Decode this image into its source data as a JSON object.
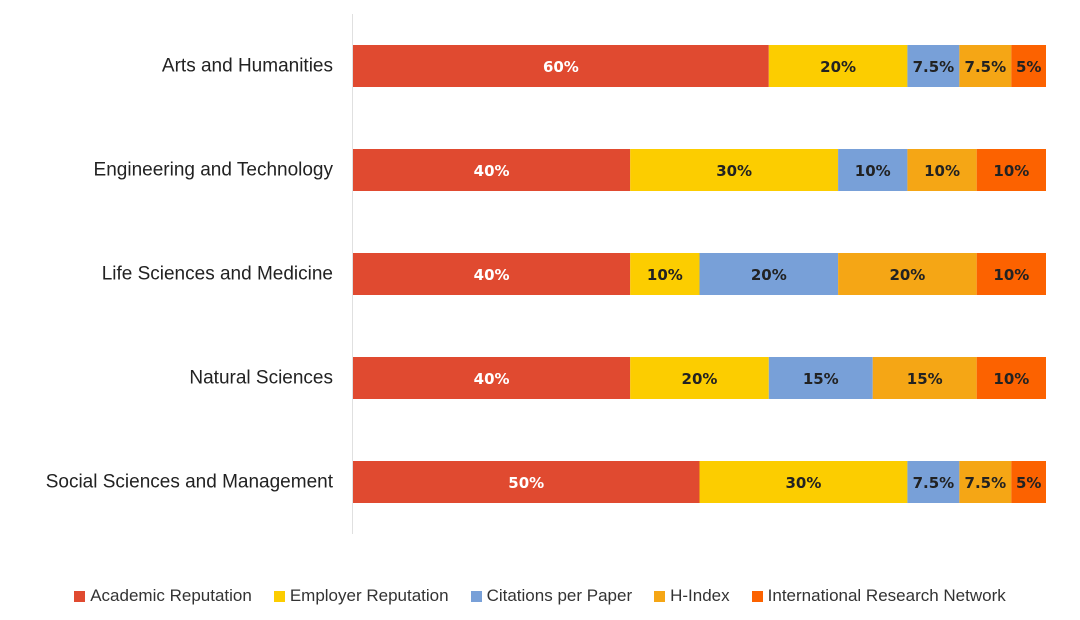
{
  "chart_data": {
    "type": "bar",
    "orientation": "horizontal",
    "stacked": true,
    "categories": [
      "Arts and Humanities",
      "Engineering and Technology",
      "Life Sciences and Medicine",
      "Natural Sciences",
      "Social Sciences and Management"
    ],
    "series": [
      {
        "name": "Academic Reputation",
        "color": "#e04a30",
        "label_color": "#ffffff",
        "values": [
          60,
          40,
          40,
          40,
          50
        ]
      },
      {
        "name": "Employer Reputation",
        "color": "#fccd00",
        "label_color": "#222222",
        "values": [
          20,
          30,
          10,
          20,
          30
        ]
      },
      {
        "name": "Citations per Paper",
        "color": "#78a0d8",
        "label_color": "#222222",
        "values": [
          7.5,
          10,
          20,
          15,
          7.5
        ]
      },
      {
        "name": "H-Index",
        "color": "#f5a615",
        "label_color": "#222222",
        "values": [
          7.5,
          10,
          20,
          15,
          7.5
        ]
      },
      {
        "name": "International Research Network",
        "color": "#fc6200",
        "label_color": "#222222",
        "values": [
          5,
          10,
          10,
          10,
          5
        ]
      }
    ],
    "xlim": [
      0,
      100
    ],
    "value_suffix": "%",
    "legend_position": "bottom",
    "grid": false
  }
}
